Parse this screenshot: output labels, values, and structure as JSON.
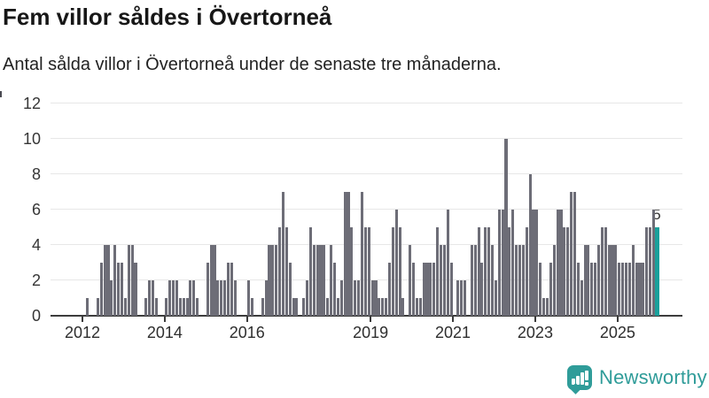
{
  "header": {
    "title": "Fem villor såldes i Övertorneå",
    "subtitle": "Antal sålda villor i Övertorneå under de senaste tre månaderna."
  },
  "chart_data": {
    "type": "bar",
    "title": "Fem villor såldes i Övertorneå",
    "subtitle": "Antal sålda villor i Övertorneå under de senaste tre månaderna.",
    "frequency": "monthly",
    "start": "2012-01",
    "end": "2025-12",
    "values": [
      0,
      1,
      0,
      0,
      1,
      3,
      4,
      4,
      2,
      4,
      3,
      3,
      1,
      4,
      4,
      3,
      0,
      0,
      1,
      2,
      2,
      1,
      0,
      0,
      1,
      2,
      2,
      2,
      1,
      1,
      1,
      2,
      2,
      1,
      0,
      0,
      3,
      4,
      4,
      2,
      2,
      2,
      3,
      3,
      2,
      0,
      0,
      0,
      2,
      1,
      0,
      0,
      1,
      2,
      4,
      4,
      4,
      5,
      7,
      5,
      3,
      1,
      1,
      0,
      1,
      2,
      5,
      4,
      4,
      4,
      4,
      1,
      4,
      3,
      1,
      2,
      7,
      7,
      5,
      2,
      2,
      7,
      5,
      5,
      2,
      2,
      1,
      1,
      1,
      3,
      5,
      6,
      5,
      1,
      0,
      4,
      3,
      1,
      1,
      3,
      3,
      3,
      3,
      5,
      4,
      4,
      6,
      3,
      0,
      2,
      2,
      2,
      0,
      4,
      4,
      5,
      3,
      5,
      5,
      4,
      2,
      6,
      6,
      10,
      5,
      6,
      4,
      4,
      4,
      5,
      8,
      6,
      6,
      3,
      1,
      1,
      3,
      4,
      6,
      6,
      5,
      5,
      7,
      7,
      3,
      2,
      4,
      4,
      3,
      3,
      4,
      5,
      5,
      4,
      4,
      4,
      3,
      3,
      3,
      3,
      4,
      3,
      3,
      3,
      5,
      5,
      6,
      5
    ],
    "x_tick_years": [
      2012,
      2014,
      2016,
      2019,
      2021,
      2023,
      2025
    ],
    "y_ticks": [
      0,
      2,
      4,
      6,
      8,
      10,
      12
    ],
    "ylim": [
      0,
      12
    ],
    "grid": "horizontal",
    "legend": "none",
    "highlight_last_bar": true,
    "last_bar_label": "5",
    "colors": {
      "bar": "#6d6d77",
      "highlight": "#1aa09b",
      "gridline": "#e7e7e7",
      "axis": "#3c3c3c"
    }
  },
  "footer": {
    "brand": "Newsworthy",
    "brand_color": "#2f9c99",
    "logo_icon": "bar-chart-speech-bubble"
  }
}
